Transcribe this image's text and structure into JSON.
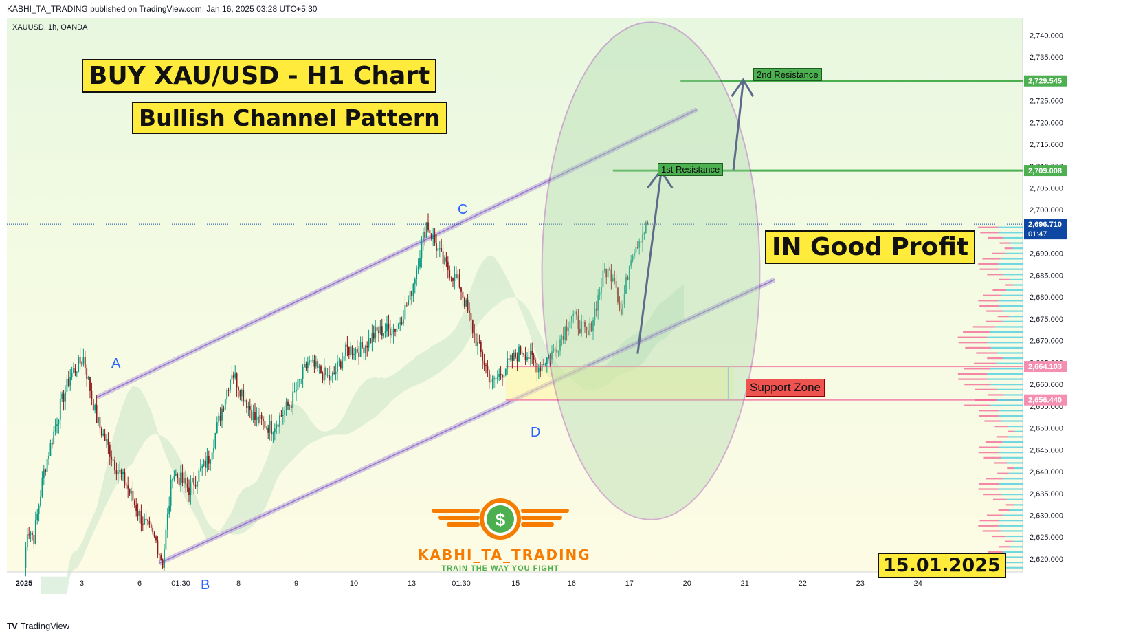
{
  "header": {
    "published_line": "KABHI_TA_TRADING published on TradingView.com, Jan 16, 2025 03:28 UTC+5:30"
  },
  "symbol_line": "XAUUSD, 1h, OANDA",
  "annotations": {
    "title_primary": "BUY XAU/USD - H1 Chart",
    "title_secondary": "Bullish Channel Pattern",
    "profit_label": "IN Good Profit",
    "date_label": "15.01.2025",
    "resistance_1": "1st Resistance",
    "resistance_2": "2nd Resistance",
    "support_label": "Support Zone",
    "points": {
      "a": "A",
      "b": "B",
      "c": "C",
      "d": "D"
    }
  },
  "brand": {
    "name": "KABHI_TA_TRADING",
    "tagline": "TRAIN THE WAY YOU FIGHT",
    "symbol": "$"
  },
  "footer": {
    "logo_text": "TV",
    "platform": "TradingView"
  },
  "colors": {
    "bull_candle": "#089981",
    "bear_candle": "#8b1a1a",
    "channel": "#b39ddb",
    "resistance": "#4caf50",
    "support": "#f48fb1",
    "ellipse": "#8e24aa",
    "price_tag": "#0d47a1",
    "label_yellow": "#ffeb3b",
    "cloud_green": "#c8e6c9",
    "cloud_red": "#ffcdd2"
  },
  "chart_data": {
    "type": "candlestick",
    "symbol": "XAUUSD",
    "timeframe": "1h",
    "source": "OANDA",
    "ylim": [
      2617,
      2744
    ],
    "y_ticks": [
      2620,
      2625,
      2630,
      2635,
      2640,
      2645,
      2650,
      2655,
      2660,
      2665,
      2670,
      2675,
      2680,
      2685,
      2690,
      2695,
      2700,
      2705,
      2710,
      2715,
      2720,
      2725,
      2730,
      2735,
      2740
    ],
    "x_tick_labels": [
      "2025",
      "3",
      "6",
      "01:30",
      "8",
      "9",
      "10",
      "13",
      "01:30",
      "15",
      "16",
      "17",
      "20",
      "21",
      "22",
      "23",
      "24"
    ],
    "x_tick_positions_bar": [
      0,
      35,
      70,
      95,
      130,
      165,
      200,
      235,
      265,
      298,
      332,
      367,
      402,
      437,
      472,
      507,
      542
    ],
    "price_tags": [
      {
        "value": 2729.545,
        "text": "2,729.545",
        "color": "#4caf50"
      },
      {
        "value": 2709.008,
        "text": "2,709.008",
        "color": "#4caf50"
      },
      {
        "value": 2696.71,
        "text": "2,696.710",
        "subtext": "01:47",
        "color": "#0d47a1"
      },
      {
        "value": 2664.103,
        "text": "2,664.103",
        "color": "#f48fb1"
      },
      {
        "value": 2656.44,
        "text": "2,656.440",
        "color": "#f48fb1"
      }
    ],
    "waypoints": [
      [
        0,
        2618
      ],
      [
        2,
        2627
      ],
      [
        6,
        2625
      ],
      [
        12,
        2640
      ],
      [
        22,
        2655
      ],
      [
        28,
        2662
      ],
      [
        36,
        2666
      ],
      [
        44,
        2652
      ],
      [
        56,
        2641
      ],
      [
        62,
        2637
      ],
      [
        70,
        2630
      ],
      [
        80,
        2624
      ],
      [
        84,
        2619
      ],
      [
        90,
        2640
      ],
      [
        100,
        2636
      ],
      [
        112,
        2643
      ],
      [
        126,
        2663
      ],
      [
        140,
        2652
      ],
      [
        150,
        2650
      ],
      [
        162,
        2656
      ],
      [
        172,
        2665
      ],
      [
        186,
        2661
      ],
      [
        196,
        2668
      ],
      [
        204,
        2668
      ],
      [
        214,
        2672
      ],
      [
        226,
        2673
      ],
      [
        234,
        2680
      ],
      [
        244,
        2697
      ],
      [
        254,
        2688
      ],
      [
        264,
        2683
      ],
      [
        274,
        2670
      ],
      [
        284,
        2660
      ],
      [
        292,
        2664
      ],
      [
        302,
        2668
      ],
      [
        312,
        2664
      ],
      [
        322,
        2668
      ],
      [
        332,
        2676
      ],
      [
        342,
        2671
      ],
      [
        352,
        2686
      ],
      [
        358,
        2685
      ],
      [
        362,
        2676
      ],
      [
        368,
        2690
      ],
      [
        378,
        2696.7
      ]
    ],
    "current_price": 2696.71,
    "resistance_levels": [
      2709.008,
      2729.545
    ],
    "support_zone": [
      2656.44,
      2664.103
    ],
    "grid": false
  }
}
